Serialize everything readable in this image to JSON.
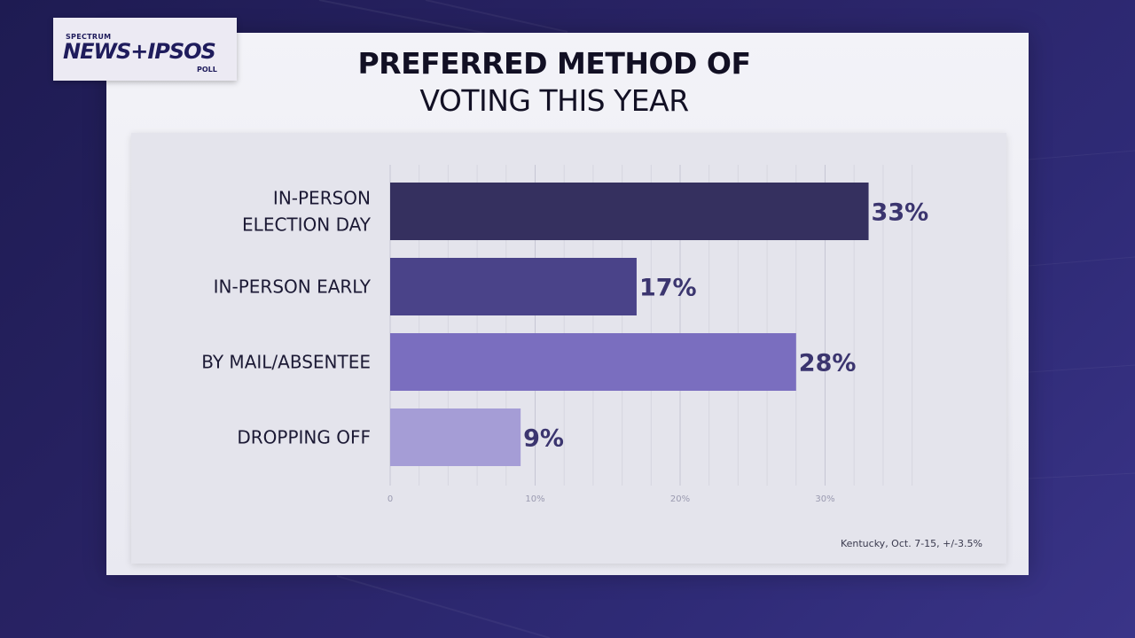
{
  "logo": {
    "brand": "SPECTRUM",
    "name": "NEWS+IPSOS",
    "sub": "POLL"
  },
  "title_line1": "PREFERRED METHOD OF",
  "title_line2": "VOTING THIS YEAR",
  "footnote": "Kentucky, Oct. 7-15, +/-3.5%",
  "chart_data": {
    "type": "bar",
    "orientation": "horizontal",
    "title": "PREFERRED METHOD OF VOTING THIS YEAR",
    "categories": [
      [
        "IN-PERSON",
        "ELECTION DAY"
      ],
      [
        "IN-PERSON EARLY"
      ],
      [
        "BY MAIL/ABSENTEE"
      ],
      [
        "DROPPING OFF"
      ]
    ],
    "values": [
      33,
      17,
      28,
      9
    ],
    "value_labels": [
      "33%",
      "17%",
      "28%",
      "9%"
    ],
    "bar_colors": [
      "#35305f",
      "#4a4389",
      "#7a6ebf",
      "#a59dd6"
    ],
    "xlim": [
      0,
      36
    ],
    "xticks": [
      0,
      10,
      20,
      30
    ],
    "xtick_labels": [
      "0",
      "10%",
      "20%",
      "30%"
    ],
    "grid": true
  }
}
